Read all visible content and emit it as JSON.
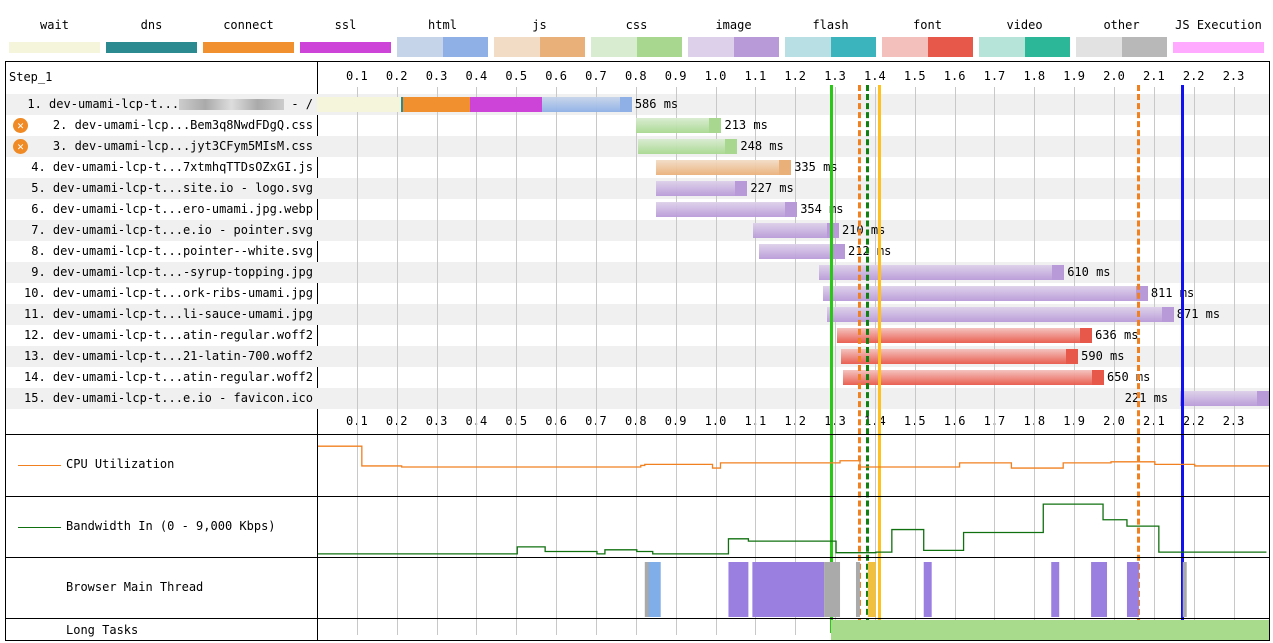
{
  "legend": [
    {
      "label": "wait",
      "colors": [
        "#f5f5dc",
        "#e8e8c0"
      ],
      "split": false
    },
    {
      "label": "dns",
      "colors": [
        "#2a8a8f",
        "#1f7075"
      ],
      "split": false
    },
    {
      "label": "connect",
      "colors": [
        "#f0902e",
        "#e07a18"
      ],
      "split": false
    },
    {
      "label": "ssl",
      "colors": [
        "#cc44d8",
        "#b030c0"
      ],
      "split": false
    },
    {
      "label": "html",
      "colors": [
        "#c6d4ea",
        "#8eb0e6"
      ],
      "split": true
    },
    {
      "label": "js",
      "colors": [
        "#f2dcc6",
        "#eab07a"
      ],
      "split": true
    },
    {
      "label": "css",
      "colors": [
        "#d8ecd0",
        "#a8d890"
      ],
      "split": true
    },
    {
      "label": "image",
      "colors": [
        "#ddd0ea",
        "#b89ad8"
      ],
      "split": true
    },
    {
      "label": "flash",
      "colors": [
        "#b8e0e4",
        "#3cb4be"
      ],
      "split": true
    },
    {
      "label": "font",
      "colors": [
        "#f4c0bc",
        "#e8584a"
      ],
      "split": true
    },
    {
      "label": "video",
      "colors": [
        "#b6e4d8",
        "#2cb898"
      ],
      "split": true
    },
    {
      "label": "other",
      "colors": [
        "#e2e2e2",
        "#b8b8b8"
      ],
      "split": true
    },
    {
      "label": "JS Execution",
      "colors": [
        "#ffaaff",
        "#ffaaff"
      ],
      "split": false
    }
  ],
  "step_label": "Step_1",
  "ticks": [
    "0.1",
    "0.2",
    "0.3",
    "0.4",
    "0.5",
    "0.6",
    "0.7",
    "0.8",
    "0.9",
    "1.0",
    "1.1",
    "1.2",
    "1.3",
    "1.4",
    "1.5",
    "1.6",
    "1.7",
    "1.8",
    "1.9",
    "2.0",
    "2.1",
    "2.2",
    "2.3"
  ],
  "requests": [
    {
      "label": "1. dev-umami-lcp-t...",
      "suffix": " - /",
      "blurred": true,
      "warn": false,
      "type": "html",
      "start": 0.0,
      "end": 0.79,
      "phases": [
        [
          0,
          0.21,
          "wait"
        ],
        [
          0.21,
          0.215,
          "dns"
        ],
        [
          0.215,
          0.385,
          "connect"
        ],
        [
          0.385,
          0.565,
          "ssl"
        ]
      ],
      "duration": "586 ms"
    },
    {
      "label": "2. dev-umami-lcp...Bem3q8NwdFDgQ.css",
      "warn": true,
      "type": "css",
      "start": 0.8,
      "end": 1.015,
      "duration": "213 ms"
    },
    {
      "label": "3. dev-umami-lcp...jyt3CFym5MIsM.css",
      "warn": true,
      "type": "css",
      "start": 0.805,
      "end": 1.055,
      "duration": "248 ms"
    },
    {
      "label": "4. dev-umami-lcp-t...7xtmhqTTDsOZxGI.js",
      "warn": false,
      "type": "js",
      "start": 0.85,
      "end": 1.19,
      "duration": "335 ms"
    },
    {
      "label": "5. dev-umami-lcp-t...site.io - logo.svg",
      "warn": false,
      "type": "image",
      "start": 0.85,
      "end": 1.08,
      "duration": "227 ms"
    },
    {
      "label": "6. dev-umami-lcp-t...ero-umami.jpg.webp",
      "warn": false,
      "type": "image",
      "start": 0.85,
      "end": 1.205,
      "duration": "354 ms"
    },
    {
      "label": "7. dev-umami-lcp-t...e.io - pointer.svg",
      "warn": false,
      "type": "image",
      "start": 1.095,
      "end": 1.31,
      "duration": "210 ms"
    },
    {
      "label": "8. dev-umami-lcp-t...pointer--white.svg",
      "warn": false,
      "type": "image",
      "start": 1.11,
      "end": 1.325,
      "duration": "212 ms"
    },
    {
      "label": "9. dev-umami-lcp-t...-syrup-topping.jpg",
      "warn": false,
      "type": "image",
      "start": 1.26,
      "end": 1.875,
      "duration": "610 ms"
    },
    {
      "label": "10. dev-umami-lcp-t...ork-ribs-umami.jpg",
      "warn": false,
      "type": "image",
      "start": 1.27,
      "end": 2.085,
      "duration": "811 ms"
    },
    {
      "label": "11. dev-umami-lcp-t...li-sauce-umami.jpg",
      "warn": false,
      "type": "image",
      "start": 1.28,
      "end": 2.15,
      "duration": "871 ms"
    },
    {
      "label": "12. dev-umami-lcp-t...atin-regular.woff2",
      "warn": false,
      "type": "font",
      "start": 1.305,
      "end": 1.945,
      "duration": "636 ms"
    },
    {
      "label": "13. dev-umami-lcp-t...21-latin-700.woff2",
      "warn": false,
      "type": "font",
      "start": 1.315,
      "end": 1.91,
      "duration": "590 ms"
    },
    {
      "label": "14. dev-umami-lcp-t...atin-regular.woff2",
      "warn": false,
      "type": "font",
      "start": 1.32,
      "end": 1.975,
      "duration": "650 ms"
    },
    {
      "label": "15. dev-umami-lcp-t...e.io - favicon.ico",
      "warn": false,
      "type": "image",
      "start": 2.165,
      "end": 2.39,
      "duration": "221 ms",
      "label_left": true
    }
  ],
  "markers": [
    {
      "time": 1.29,
      "color": "#28c814",
      "style": "solid"
    },
    {
      "time": 1.36,
      "color": "#f08020",
      "style": "dashed"
    },
    {
      "time": 1.38,
      "color": "#108010",
      "style": "dashed"
    },
    {
      "time": 1.41,
      "color": "#ffc020",
      "style": "solid"
    },
    {
      "time": 2.06,
      "color": "#f08020",
      "style": "dashed"
    },
    {
      "time": 2.17,
      "color": "#1010f0",
      "style": "solid"
    }
  ],
  "panels": {
    "cpu_label": "CPU Utilization",
    "bandwidth_label": "Bandwidth In (0 - 9,000 Kbps)",
    "main_thread_label": "Browser Main Thread",
    "long_tasks_label": "Long Tasks"
  },
  "chart_data": {
    "type": "line",
    "cpu": {
      "color": "#f08020",
      "points": [
        [
          0,
          90
        ],
        [
          0.11,
          90
        ],
        [
          0.11,
          52
        ],
        [
          0.21,
          52
        ],
        [
          0.21,
          50
        ],
        [
          0.81,
          50
        ],
        [
          0.81,
          53
        ],
        [
          0.82,
          53
        ],
        [
          0.82,
          55
        ],
        [
          0.99,
          55
        ],
        [
          0.99,
          48
        ],
        [
          1.01,
          48
        ],
        [
          1.01,
          58
        ],
        [
          1.08,
          58
        ],
        [
          1.08,
          58
        ],
        [
          1.31,
          58
        ],
        [
          1.31,
          62
        ],
        [
          1.36,
          62
        ],
        [
          1.36,
          50
        ],
        [
          1.61,
          50
        ],
        [
          1.61,
          58
        ],
        [
          1.74,
          58
        ],
        [
          1.74,
          48
        ],
        [
          1.87,
          48
        ],
        [
          1.87,
          58
        ],
        [
          1.99,
          58
        ],
        [
          1.99,
          60
        ],
        [
          2.1,
          60
        ],
        [
          2.1,
          55
        ],
        [
          2.2,
          55
        ],
        [
          2.2,
          52
        ],
        [
          2.39,
          52
        ]
      ]
    },
    "bandwidth": {
      "color": "#107010",
      "max_kbps": 9000,
      "points": [
        [
          0,
          200
        ],
        [
          0.5,
          200
        ],
        [
          0.5,
          1400
        ],
        [
          0.57,
          1400
        ],
        [
          0.57,
          600
        ],
        [
          0.7,
          600
        ],
        [
          0.7,
          200
        ],
        [
          0.72,
          200
        ],
        [
          0.72,
          900
        ],
        [
          0.8,
          900
        ],
        [
          0.8,
          600
        ],
        [
          0.84,
          600
        ],
        [
          0.84,
          200
        ],
        [
          1.03,
          200
        ],
        [
          1.03,
          2800
        ],
        [
          1.08,
          2800
        ],
        [
          1.08,
          2400
        ],
        [
          1.3,
          2400
        ],
        [
          1.3,
          400
        ],
        [
          1.4,
          400
        ],
        [
          1.4,
          500
        ],
        [
          1.44,
          500
        ],
        [
          1.44,
          4400
        ],
        [
          1.52,
          4400
        ],
        [
          1.52,
          800
        ],
        [
          1.62,
          800
        ],
        [
          1.62,
          3900
        ],
        [
          1.82,
          3900
        ],
        [
          1.82,
          8800
        ],
        [
          1.97,
          8800
        ],
        [
          1.97,
          6100
        ],
        [
          2.03,
          6100
        ],
        [
          2.03,
          5000
        ],
        [
          2.08,
          5000
        ],
        [
          2.08,
          5000
        ],
        [
          2.11,
          5000
        ],
        [
          2.11,
          500
        ],
        [
          2.38,
          500
        ]
      ]
    },
    "long_tasks": [
      [
        1.29,
        2.39
      ]
    ]
  }
}
